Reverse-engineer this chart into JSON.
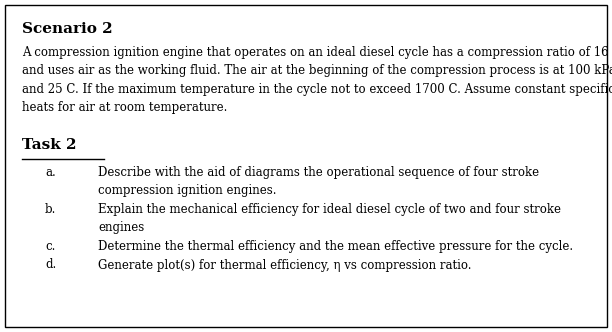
{
  "title": "Scenario 2",
  "scenario_text": [
    "A compression ignition engine that operates on an ideal diesel cycle has a compression ratio of 16",
    "and uses air as the working fluid. The air at the beginning of the compression process is at 100 kPa",
    "and 25 C. If the maximum temperature in the cycle not to exceed 1700 C. Assume constant specific",
    "heats for air at room temperature."
  ],
  "task_label": "Task 2",
  "task_items": [
    {
      "label": "a.",
      "lines": [
        "Describe with the aid of diagrams the operational sequence of four stroke",
        "compression ignition engines."
      ]
    },
    {
      "label": "b.",
      "lines": [
        "Explain the mechanical efficiency for ideal diesel cycle of two and four stroke",
        "engines"
      ]
    },
    {
      "label": "c.",
      "lines": [
        "Determine the thermal efficiency and the mean effective pressure for the cycle."
      ]
    },
    {
      "label": "d.",
      "lines": [
        "Generate plot(s) for thermal efficiency, η vs compression ratio."
      ]
    }
  ],
  "bg_color": "#ffffff",
  "border_color": "#000000",
  "text_color": "#000000",
  "title_fontsize": 11,
  "body_fontsize": 8.5,
  "task_fontsize": 11
}
